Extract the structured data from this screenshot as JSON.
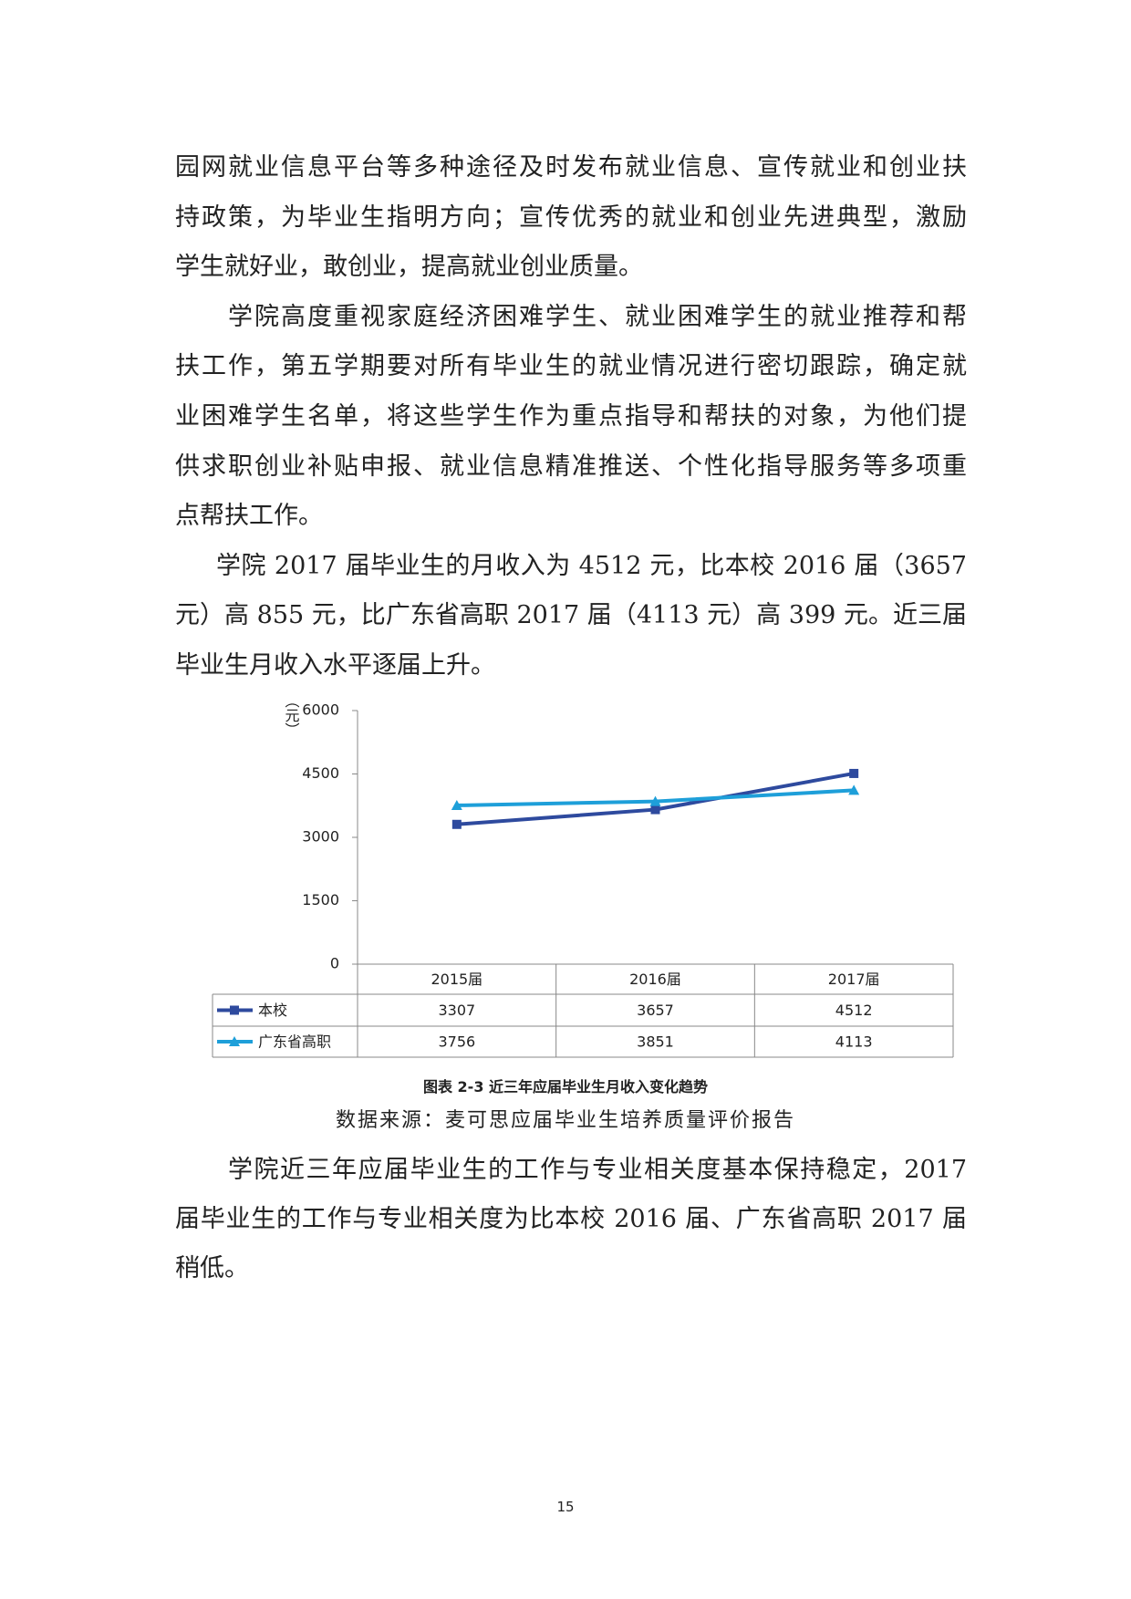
{
  "body_before": [
    [
      "园网就业信息平台等多种途径及时发布就业信息、宣传就业和创业扶",
      "持政策，为毕业生指明方向；宣传优秀的就业和创业先进典型，激励",
      "学生就好业，敢创业，提高就业创业质量。"
    ],
    [
      "学院高度重视家庭经济困难学生、就业困难学生的就业推荐和帮",
      "扶工作，第五学期要对所有毕业生的就业情况进行密切跟踪，确定就",
      "业困难学生名单，将这些学生作为重点指导和帮扶的对象，为他们提",
      "供求职创业补贴申报、就业信息精准推送、个性化指导服务等多项重",
      "点帮扶工作。"
    ],
    [
      "学院 2017 届毕业生的月收入为 4512 元，比本校 2016 届（3657",
      "元）高 855 元，比广东省高职 2017 届（4113 元）高 399 元。近三届",
      "毕业生月收入水平逐届上升。"
    ]
  ],
  "chart_data": {
    "type": "line",
    "y_label": "（元）",
    "categories": [
      "2015届",
      "2016届",
      "2017届"
    ],
    "series": [
      {
        "name": "本校",
        "color": "#2e4a9e",
        "marker": "square",
        "values": [
          3307,
          3657,
          4512
        ]
      },
      {
        "name": "广东省高职",
        "color": "#1e9fd9",
        "marker": "triangle",
        "values": [
          3756,
          3851,
          4113
        ]
      }
    ],
    "ylim": [
      0,
      6000
    ],
    "yticks": [
      0,
      1500,
      3000,
      4500,
      6000
    ],
    "data_table": true
  },
  "caption": "图表 2-3 近三年应届毕业生月收入变化趋势",
  "source": "数据来源：麦可思应届毕业生培养质量评价报告",
  "body_after": [
    [
      "学院近三年应届毕业生的工作与专业相关度基本保持稳定，2017",
      "届毕业生的工作与专业相关度为比本校 2016 届、广东省高职 2017 届",
      "稍低。"
    ]
  ],
  "page_number": "15"
}
